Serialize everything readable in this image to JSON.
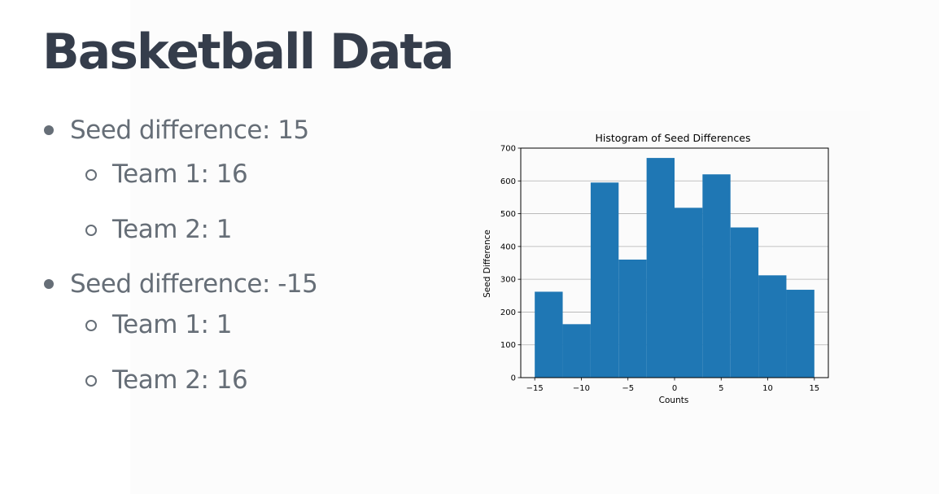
{
  "slide": {
    "title": "Basketball Data",
    "bullets": [
      {
        "text": "Seed difference: 15",
        "sub": [
          {
            "text": "Team 1: 16"
          },
          {
            "text": "Team 2: 1"
          }
        ]
      },
      {
        "text": "Seed difference: -15",
        "sub": [
          {
            "text": "Team 1: 1"
          },
          {
            "text": "Team 2: 16"
          }
        ]
      }
    ]
  },
  "chart_data": {
    "type": "bar",
    "title": "Histogram of Seed Differences",
    "xlabel": "Counts",
    "ylabel": "Seed Difference",
    "bin_edges": [
      -15,
      -12,
      -9,
      -6,
      -3,
      0,
      3,
      6,
      9,
      12,
      15
    ],
    "values": [
      262,
      163,
      595,
      360,
      670,
      518,
      620,
      458,
      312,
      268
    ],
    "xlim": [
      -16.5,
      16.5
    ],
    "ylim": [
      0,
      700
    ],
    "xticks": [
      -15,
      -10,
      -5,
      0,
      5,
      10,
      15
    ],
    "xtick_labels": [
      "−15",
      "−10",
      "−5",
      "0",
      "5",
      "10",
      "15"
    ],
    "yticks": [
      0,
      100,
      200,
      300,
      400,
      500,
      600,
      700
    ],
    "grid": "y",
    "bar_color": "#1f77b4"
  }
}
